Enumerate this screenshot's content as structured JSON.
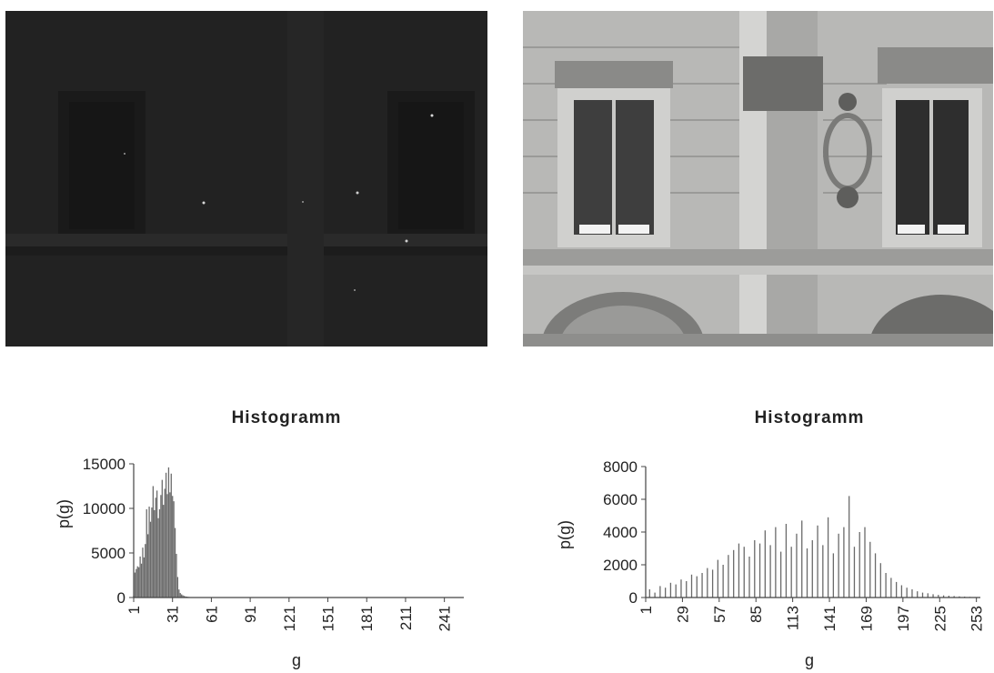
{
  "images": {
    "left": {
      "description_icon": "dark-facade-photo"
    },
    "right": {
      "description_icon": "bright-facade-photo"
    }
  },
  "colors": {
    "bar": "#6a6a6a",
    "axis": "#444444",
    "dark_photo": "#232323",
    "bright_photo": "#b4b4b2"
  },
  "chart_data": [
    {
      "type": "bar",
      "title": "Histogramm",
      "xlabel": "g",
      "ylabel": "p(g)",
      "xlim": [
        1,
        256
      ],
      "ylim": [
        0,
        15000
      ],
      "x_ticks": [
        1,
        31,
        61,
        91,
        121,
        151,
        181,
        211,
        241
      ],
      "y_ticks": [
        0,
        5000,
        10000,
        15000
      ],
      "bin_width": 1,
      "x": [
        1,
        2,
        3,
        4,
        5,
        6,
        7,
        8,
        9,
        10,
        11,
        12,
        13,
        14,
        15,
        16,
        17,
        18,
        19,
        20,
        21,
        22,
        23,
        24,
        25,
        26,
        27,
        28,
        29,
        30,
        31,
        32,
        33,
        34,
        35,
        36,
        37,
        38,
        39,
        40,
        41,
        42,
        43,
        44,
        45,
        46,
        47,
        48,
        49,
        50
      ],
      "values": [
        200,
        2800,
        3200,
        3500,
        3400,
        4600,
        3800,
        5600,
        4500,
        6000,
        9900,
        7100,
        10200,
        8500,
        10100,
        12500,
        9800,
        11200,
        12000,
        8900,
        9900,
        11500,
        13200,
        10400,
        12200,
        14000,
        11600,
        14600,
        11800,
        13900,
        11400,
        10800,
        7800,
        4900,
        2300,
        900,
        500,
        350,
        250,
        180,
        130,
        100,
        80,
        60,
        50,
        40,
        30,
        20,
        15,
        10
      ],
      "grid": false,
      "legend": "none"
    },
    {
      "type": "bar",
      "title": "Histogramm",
      "xlabel": "g",
      "ylabel": "p(g)",
      "xlim": [
        1,
        256
      ],
      "ylim": [
        0,
        8000
      ],
      "x_ticks": [
        1,
        29,
        57,
        85,
        113,
        141,
        169,
        197,
        225,
        253
      ],
      "y_ticks": [
        0,
        2000,
        4000,
        6000,
        8000
      ],
      "bin_width": 1,
      "x": [
        4,
        8,
        12,
        16,
        20,
        24,
        28,
        32,
        36,
        40,
        44,
        48,
        52,
        56,
        60,
        64,
        68,
        72,
        76,
        80,
        84,
        88,
        92,
        96,
        100,
        104,
        108,
        112,
        116,
        120,
        124,
        128,
        132,
        136,
        140,
        144,
        148,
        152,
        156,
        160,
        164,
        168,
        172,
        176,
        180,
        184,
        188,
        192,
        196,
        200,
        204,
        208,
        212,
        216,
        220,
        224,
        228,
        232,
        236,
        240,
        244,
        248,
        252
      ],
      "values": [
        500,
        300,
        700,
        600,
        900,
        800,
        1100,
        1000,
        1400,
        1300,
        1500,
        1800,
        1700,
        2300,
        2000,
        2600,
        2900,
        3300,
        3100,
        2500,
        3500,
        3300,
        4100,
        3200,
        4300,
        2800,
        4500,
        3100,
        3900,
        4700,
        3000,
        3500,
        4400,
        3200,
        4900,
        2700,
        3900,
        4300,
        6200,
        3100,
        4000,
        4300,
        3400,
        2700,
        2100,
        1500,
        1200,
        950,
        750,
        600,
        500,
        380,
        300,
        260,
        200,
        160,
        130,
        110,
        90,
        70,
        55,
        40,
        30
      ],
      "grid": false,
      "legend": "none"
    }
  ]
}
